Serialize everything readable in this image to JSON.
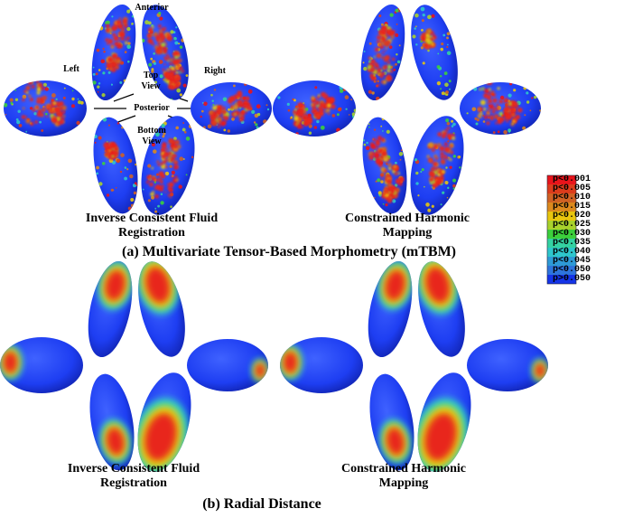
{
  "panel_a": {
    "heading": "(a) Multivariate Tensor-Based Morphometry (mTBM)",
    "left_caption": [
      "Inverse Consistent Fluid",
      "Registration"
    ],
    "right_caption": [
      "Constrained Harmonic",
      "Mapping"
    ]
  },
  "panel_b": {
    "heading": "(b) Radial Distance",
    "left_caption": [
      "Inverse Consistent Fluid",
      "Registration"
    ],
    "right_caption": [
      "Constrained Harmonic",
      "Mapping"
    ]
  },
  "view_labels": {
    "anterior": "Anterior",
    "left": "Left",
    "right": "Right",
    "top_view": [
      "Top",
      "View"
    ],
    "posterior": "Posterior",
    "bottom_view": [
      "Bottom",
      "View"
    ]
  },
  "legend": {
    "entries": [
      {
        "label": "p<0.001",
        "color": "#e8141b"
      },
      {
        "label": "p<0.005",
        "color": "#dc3c1c"
      },
      {
        "label": "p<0.010",
        "color": "#d06224"
      },
      {
        "label": "p<0.015",
        "color": "#dc8a1e"
      },
      {
        "label": "p<0.020",
        "color": "#e8c60e"
      },
      {
        "label": "p<0.025",
        "color": "#a8d22c"
      },
      {
        "label": "p<0.030",
        "color": "#3ccf3c"
      },
      {
        "label": "p<0.035",
        "color": "#34d2a2"
      },
      {
        "label": "p<0.040",
        "color": "#2ec6cc"
      },
      {
        "label": "p<0.045",
        "color": "#2e9ad6"
      },
      {
        "label": "p<0.050",
        "color": "#2e74dc"
      },
      {
        "label": "p>0.050",
        "color": "#1434e8"
      }
    ]
  },
  "colors": {
    "surface_blue": "#1a3ef0",
    "significant_red": "#e8261c"
  }
}
